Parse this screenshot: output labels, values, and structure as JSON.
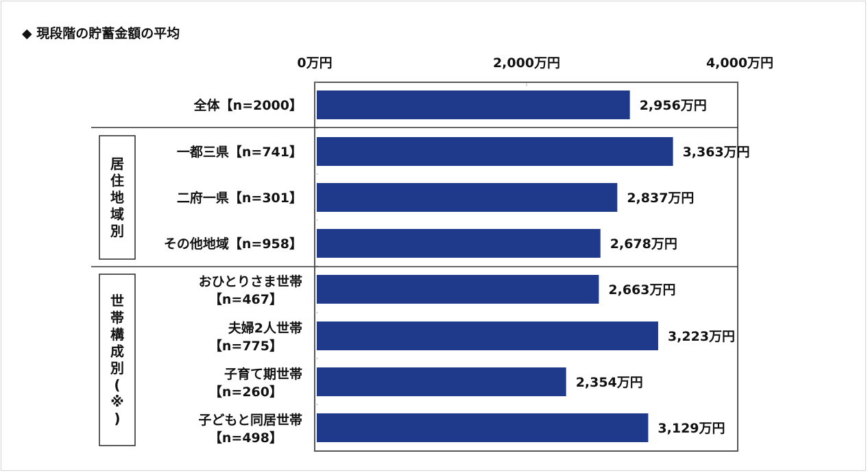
{
  "chart_data": {
    "type": "bar",
    "orientation": "horizontal",
    "title": "◆ 現段階の貯蓄金額の平均",
    "unit": "万円",
    "xlim": [
      0,
      4000
    ],
    "ticks": [
      {
        "value": 0,
        "label": "0万円"
      },
      {
        "value": 2000,
        "label": "2,000万円"
      },
      {
        "value": 4000,
        "label": "4,000万円"
      }
    ],
    "bar_color": "#1f3a8a",
    "groups": [
      {
        "label": "",
        "rows": [
          0
        ]
      },
      {
        "label": "居住地域別",
        "rows": [
          1,
          2,
          3
        ]
      },
      {
        "label": "世帯構成別(※)",
        "rows": [
          4,
          5,
          6,
          7
        ]
      }
    ],
    "categories": [
      [
        "全体【n=2000】"
      ],
      [
        "一都三県【n=741】"
      ],
      [
        "二府一県【n=301】"
      ],
      [
        "その他地域【n=958】"
      ],
      [
        "おひとりさま世帯",
        "【n=467】"
      ],
      [
        "夫婦2人世帯",
        "【n=775】"
      ],
      [
        "子育て期世帯",
        "【n=260】"
      ],
      [
        "子どもと同居世帯",
        "【n=498】"
      ]
    ],
    "values": [
      2956,
      3363,
      2837,
      2678,
      2663,
      3223,
      2354,
      3129
    ],
    "value_labels": [
      "2,956万円",
      "3,363万円",
      "2,837万円",
      "2,678万円",
      "2,663万円",
      "3,223万円",
      "2,354万円",
      "3,129万円"
    ]
  }
}
